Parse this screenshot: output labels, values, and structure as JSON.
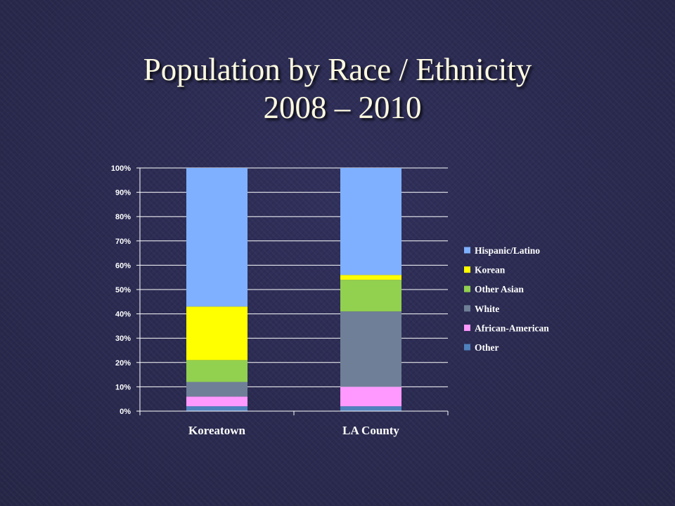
{
  "title": {
    "line1": "Population by Race / Ethnicity",
    "line2": "2008 – 2010"
  },
  "chart_data": {
    "type": "bar",
    "stacked": true,
    "categories": [
      "Koreatown",
      "LA County"
    ],
    "series": [
      {
        "name": "Other",
        "color": "#4f81bd",
        "values": [
          2,
          2
        ]
      },
      {
        "name": "African-American",
        "color": "#ff99ff",
        "values": [
          4,
          8
        ]
      },
      {
        "name": "White",
        "color": "#6f7f97",
        "values": [
          6,
          31
        ]
      },
      {
        "name": "Other Asian",
        "color": "#92d050",
        "values": [
          9,
          13
        ]
      },
      {
        "name": "Korean",
        "color": "#ffff00",
        "values": [
          22,
          2
        ]
      },
      {
        "name": "Hispanic/Latino",
        "color": "#7fb0ff",
        "values": [
          57,
          44
        ]
      }
    ],
    "legend_order": [
      "Hispanic/Latino",
      "Korean",
      "Other Asian",
      "White",
      "African-American",
      "Other"
    ],
    "ylim": [
      0,
      100
    ],
    "yticks": [
      "0%",
      "10%",
      "20%",
      "30%",
      "40%",
      "50%",
      "60%",
      "70%",
      "80%",
      "90%",
      "100%"
    ],
    "grid": true,
    "legend_position": "right",
    "xlabel": "",
    "ylabel": ""
  }
}
